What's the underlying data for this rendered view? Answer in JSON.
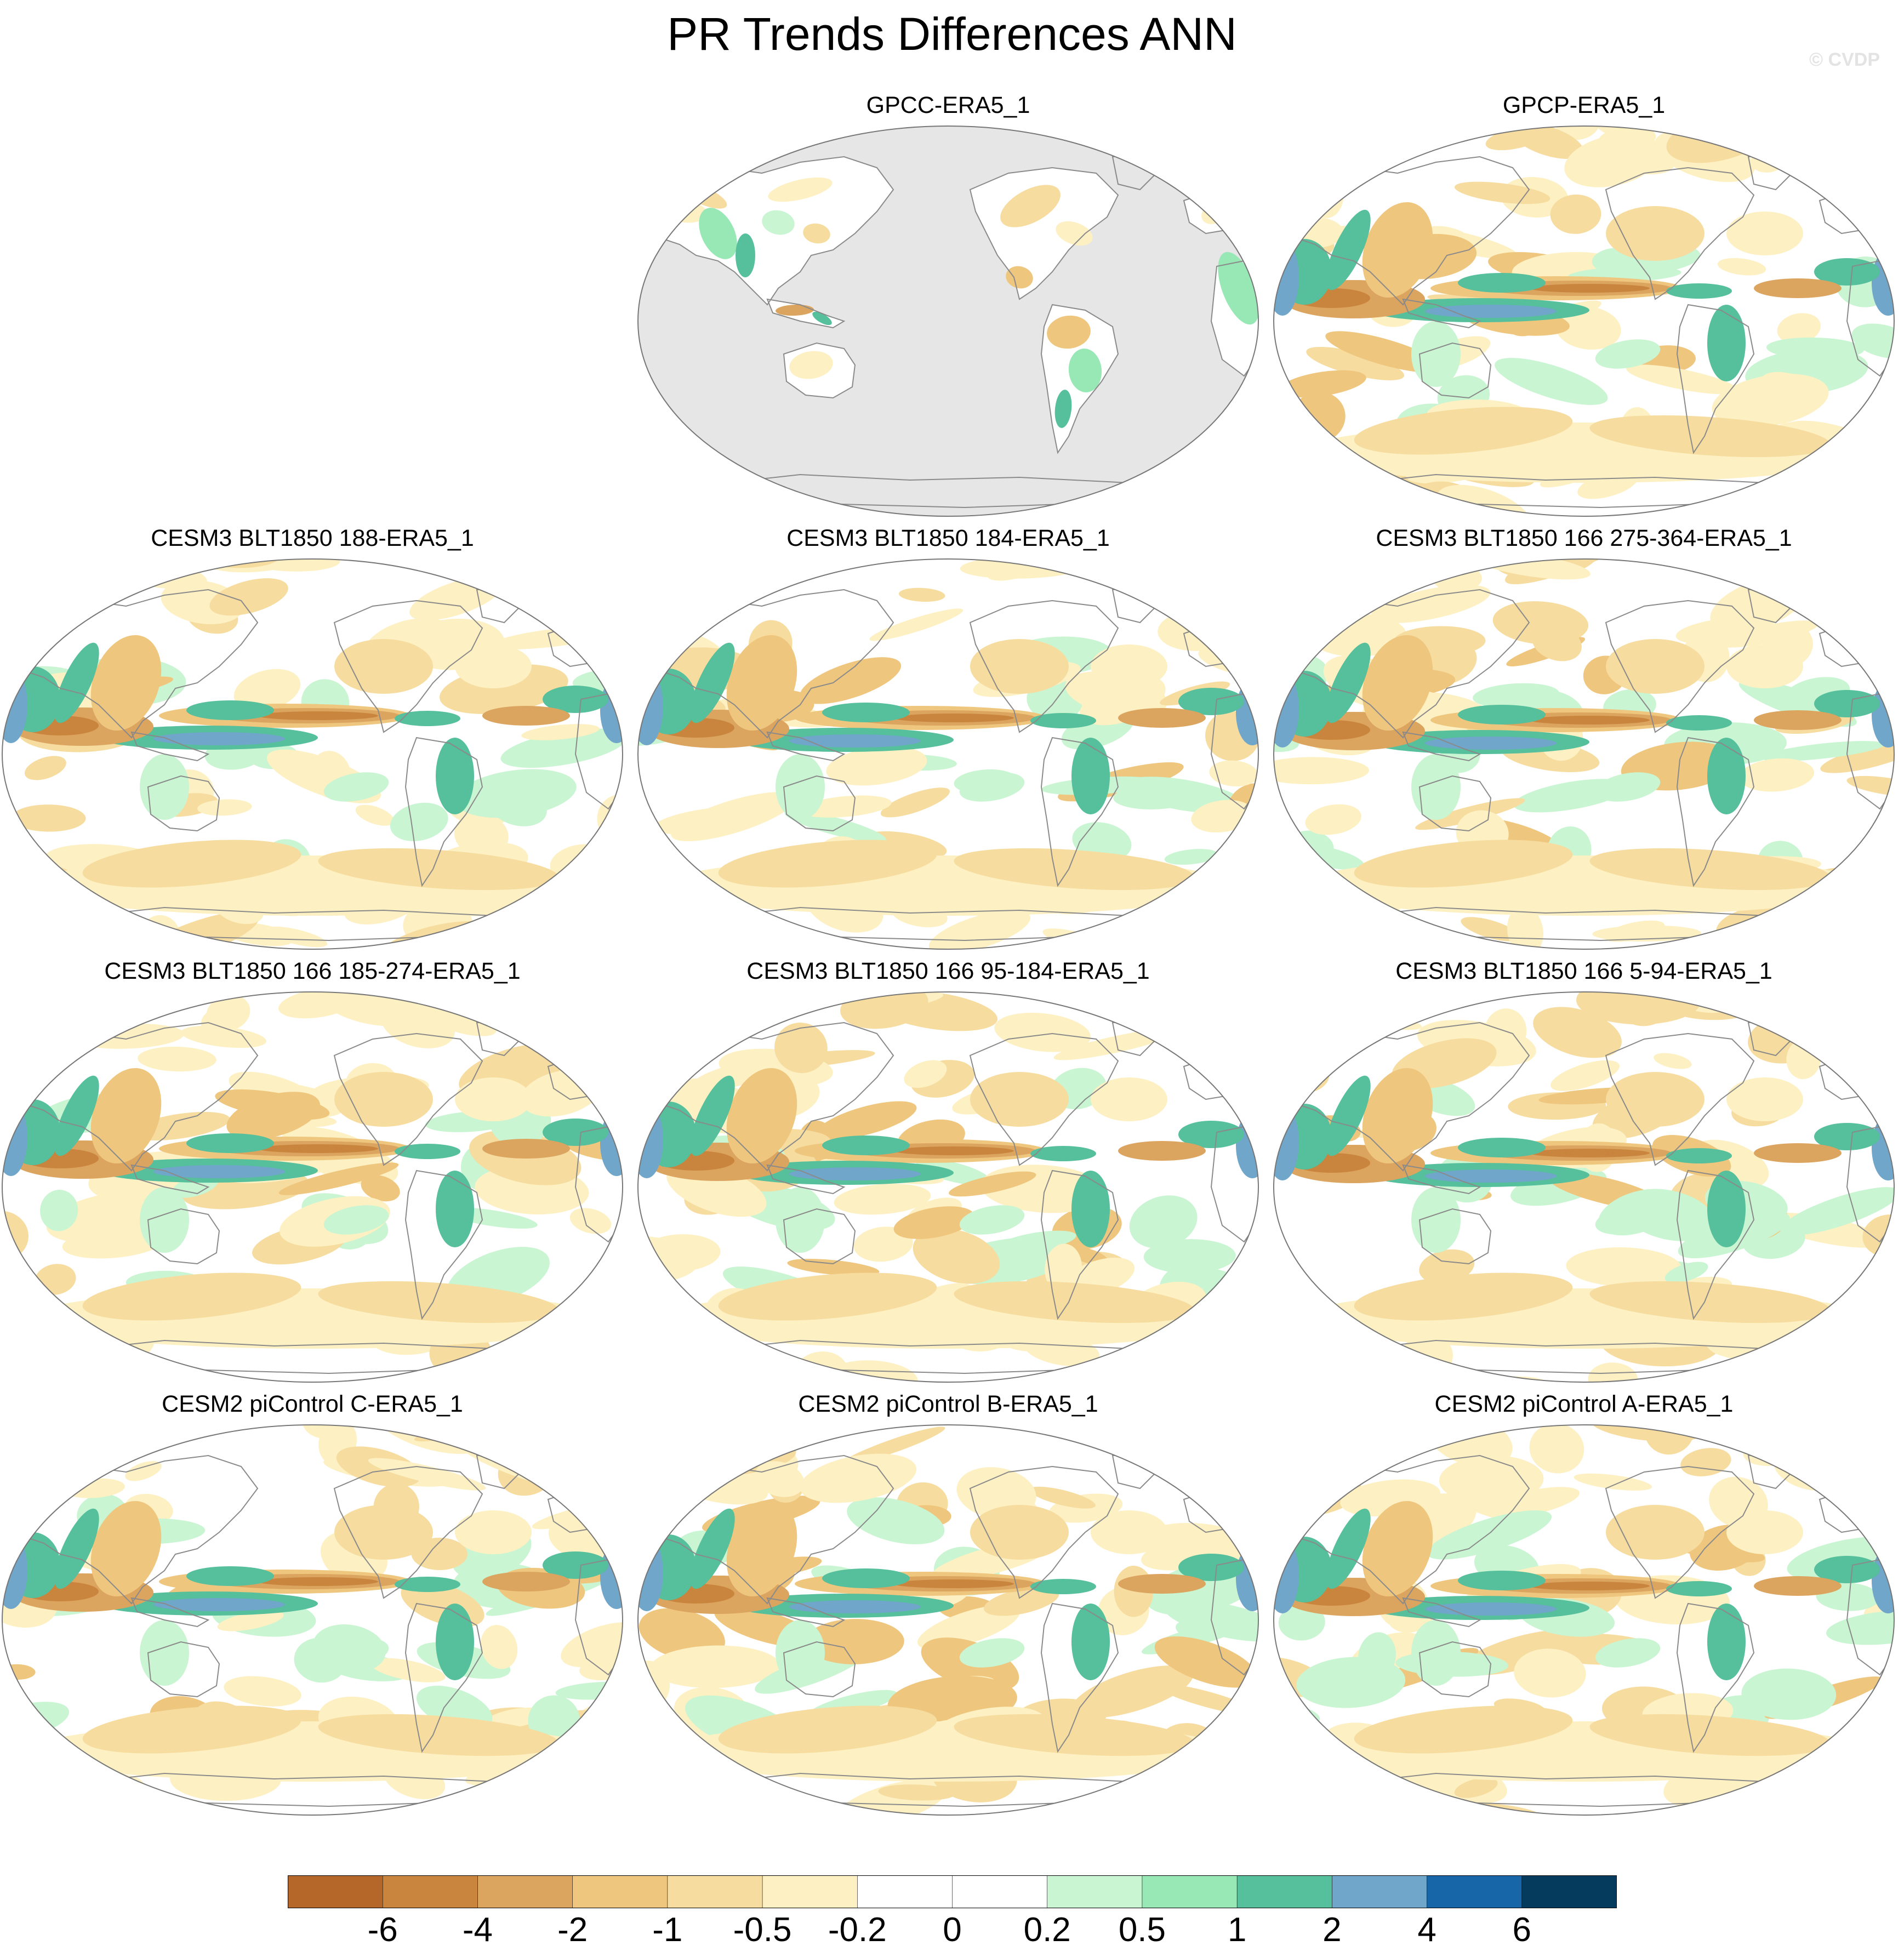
{
  "figure": {
    "title": "PR Trends Differences ANN",
    "watermark": "© CVDP"
  },
  "colors": {
    "ocean_missing": "#e6e6e6",
    "coast": "#8a8a8a",
    "border": "#777777"
  },
  "panels": [
    {
      "title": "GPCC-ERA5_1",
      "kind": "land"
    },
    {
      "title": "GPCP-ERA5_1",
      "kind": "full"
    },
    {
      "title": "CESM3 BLT1850 188-ERA5_1",
      "kind": "model"
    },
    {
      "title": "CESM3 BLT1850 184-ERA5_1",
      "kind": "model"
    },
    {
      "title": "CESM3 BLT1850 166 275-364-ERA5_1",
      "kind": "model"
    },
    {
      "title": "CESM3 BLT1850 166 185-274-ERA5_1",
      "kind": "model"
    },
    {
      "title": "CESM3 BLT1850 166 95-184-ERA5_1",
      "kind": "model"
    },
    {
      "title": "CESM3 BLT1850 166 5-94-ERA5_1",
      "kind": "model"
    },
    {
      "title": "CESM2 piControl C-ERA5_1",
      "kind": "model"
    },
    {
      "title": "CESM2 piControl B-ERA5_1",
      "kind": "model"
    },
    {
      "title": "CESM2 piControl A-ERA5_1",
      "kind": "model"
    }
  ],
  "colorbar": {
    "labels": [
      "-6",
      "-4",
      "-2",
      "-1",
      "-0.5",
      "-0.2",
      "0",
      "0.2",
      "0.5",
      "1",
      "2",
      "4",
      "6"
    ],
    "colors": [
      "#b5672a",
      "#c9853d",
      "#dba45f",
      "#efc67e",
      "#f6dc9f",
      "#fdf0c2",
      "#ffffff",
      "#ffffff",
      "#c9f5d2",
      "#98e8b6",
      "#56bf9b",
      "#6fa6c9",
      "#1766a8",
      "#053b5c"
    ]
  }
}
